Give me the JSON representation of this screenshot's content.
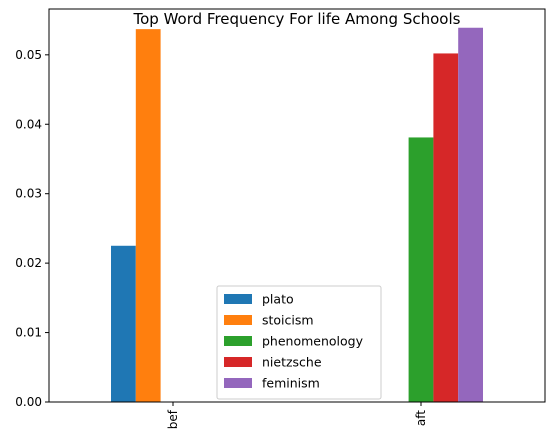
{
  "chart_data": {
    "type": "bar",
    "title": "Top Word Frequency For life Among Schools",
    "xlabel": "",
    "ylabel": "",
    "categories": [
      "bef",
      "aft"
    ],
    "series": [
      {
        "name": "plato",
        "color": "#1f77b4",
        "values": [
          0.0225,
          0
        ]
      },
      {
        "name": "stoicism",
        "color": "#ff7f0e",
        "values": [
          0.0537,
          0
        ]
      },
      {
        "name": "phenomenology",
        "color": "#2ca02c",
        "values": [
          0,
          0.0381
        ]
      },
      {
        "name": "nietzsche",
        "color": "#d62728",
        "values": [
          0,
          0.0502
        ]
      },
      {
        "name": "feminism",
        "color": "#9467bd",
        "values": [
          0,
          0.0539
        ]
      }
    ],
    "ylim": [
      0,
      0.0566
    ],
    "yticks": [
      "0.00",
      "0.01",
      "0.02",
      "0.03",
      "0.04",
      "0.05"
    ],
    "ytick_values": [
      0,
      0.01,
      0.02,
      0.03,
      0.04,
      0.05
    ],
    "grid": false,
    "legend_position": "lower-center"
  }
}
